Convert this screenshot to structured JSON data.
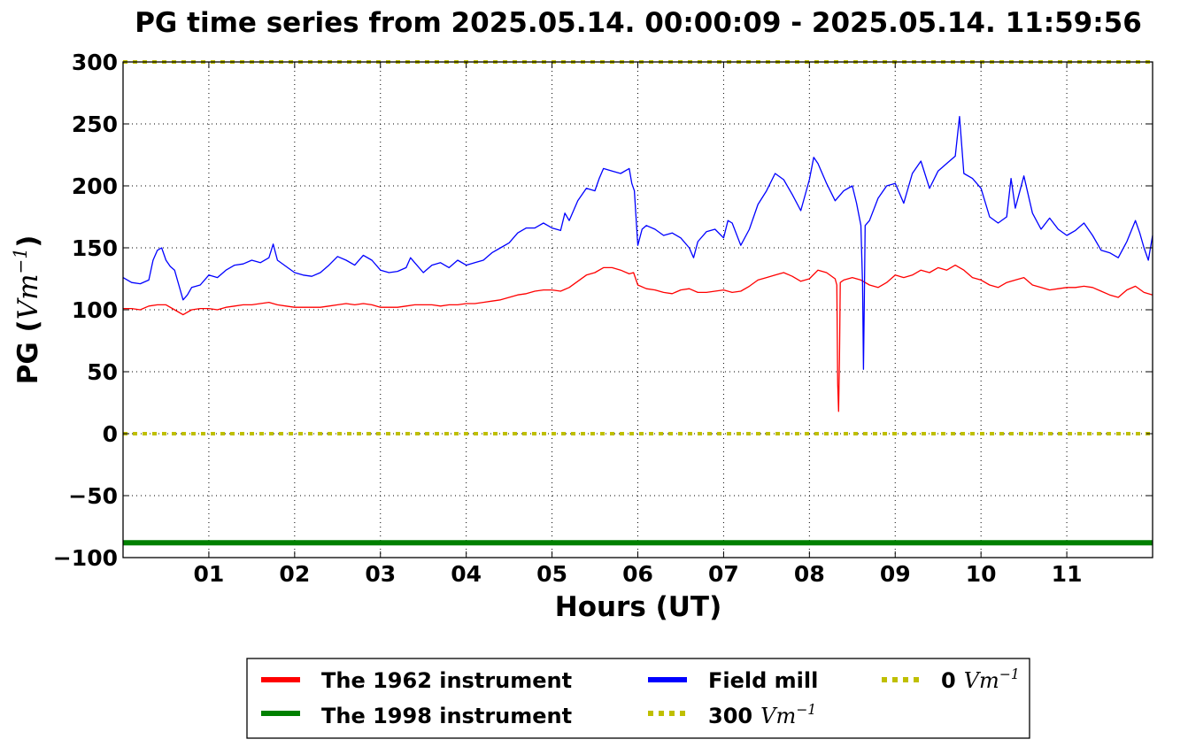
{
  "chart_data": {
    "type": "line",
    "title": "PG time series from 2025.05.14. 00:00:09 - 2025.05.14. 11:59:56",
    "xlabel": "Hours (UT)",
    "ylabel": {
      "prefix": "PG (",
      "math": "Vm",
      "sup": "−1",
      "suffix": ")"
    },
    "xlim": [
      0,
      12
    ],
    "ylim": [
      -100,
      300
    ],
    "xticks": [
      {
        "value": 1,
        "label": "01"
      },
      {
        "value": 2,
        "label": "02"
      },
      {
        "value": 3,
        "label": "03"
      },
      {
        "value": 4,
        "label": "04"
      },
      {
        "value": 5,
        "label": "05"
      },
      {
        "value": 6,
        "label": "06"
      },
      {
        "value": 7,
        "label": "07"
      },
      {
        "value": 8,
        "label": "08"
      },
      {
        "value": 9,
        "label": "09"
      },
      {
        "value": 10,
        "label": "10"
      },
      {
        "value": 11,
        "label": "11"
      }
    ],
    "yticks": [
      {
        "value": 300,
        "label": "300"
      },
      {
        "value": 250,
        "label": "250"
      },
      {
        "value": 200,
        "label": "200"
      },
      {
        "value": 150,
        "label": "150"
      },
      {
        "value": 100,
        "label": "100"
      },
      {
        "value": 50,
        "label": "50"
      },
      {
        "value": 0,
        "label": "0"
      },
      {
        "value": -50,
        "label": "−50"
      },
      {
        "value": -100,
        "label": "−100"
      }
    ],
    "grid": true,
    "legend_position": "below",
    "series": [
      {
        "name": "The 1962 instrument",
        "color": "#ff0000",
        "style": "solid",
        "points": [
          [
            0.0,
            101
          ],
          [
            0.1,
            101
          ],
          [
            0.2,
            100
          ],
          [
            0.3,
            103
          ],
          [
            0.4,
            104
          ],
          [
            0.5,
            104
          ],
          [
            0.6,
            100
          ],
          [
            0.7,
            96
          ],
          [
            0.8,
            100
          ],
          [
            0.9,
            101
          ],
          [
            1.0,
            101
          ],
          [
            1.1,
            100
          ],
          [
            1.2,
            102
          ],
          [
            1.3,
            103
          ],
          [
            1.4,
            104
          ],
          [
            1.5,
            104
          ],
          [
            1.6,
            105
          ],
          [
            1.7,
            106
          ],
          [
            1.8,
            104
          ],
          [
            1.9,
            103
          ],
          [
            2.0,
            102
          ],
          [
            2.1,
            102
          ],
          [
            2.2,
            102
          ],
          [
            2.3,
            102
          ],
          [
            2.4,
            103
          ],
          [
            2.5,
            104
          ],
          [
            2.6,
            105
          ],
          [
            2.7,
            104
          ],
          [
            2.8,
            105
          ],
          [
            2.9,
            104
          ],
          [
            3.0,
            102
          ],
          [
            3.1,
            102
          ],
          [
            3.2,
            102
          ],
          [
            3.3,
            103
          ],
          [
            3.4,
            104
          ],
          [
            3.5,
            104
          ],
          [
            3.6,
            104
          ],
          [
            3.7,
            103
          ],
          [
            3.8,
            104
          ],
          [
            3.9,
            104
          ],
          [
            4.0,
            105
          ],
          [
            4.1,
            105
          ],
          [
            4.2,
            106
          ],
          [
            4.3,
            107
          ],
          [
            4.4,
            108
          ],
          [
            4.5,
            110
          ],
          [
            4.6,
            112
          ],
          [
            4.7,
            113
          ],
          [
            4.8,
            115
          ],
          [
            4.9,
            116
          ],
          [
            5.0,
            116
          ],
          [
            5.1,
            115
          ],
          [
            5.2,
            118
          ],
          [
            5.3,
            123
          ],
          [
            5.4,
            128
          ],
          [
            5.5,
            130
          ],
          [
            5.6,
            134
          ],
          [
            5.7,
            134
          ],
          [
            5.8,
            132
          ],
          [
            5.9,
            129
          ],
          [
            5.95,
            130
          ],
          [
            6.0,
            120
          ],
          [
            6.1,
            117
          ],
          [
            6.2,
            116
          ],
          [
            6.3,
            114
          ],
          [
            6.4,
            113
          ],
          [
            6.5,
            116
          ],
          [
            6.6,
            117
          ],
          [
            6.7,
            114
          ],
          [
            6.8,
            114
          ],
          [
            6.9,
            115
          ],
          [
            7.0,
            116
          ],
          [
            7.1,
            114
          ],
          [
            7.2,
            115
          ],
          [
            7.3,
            119
          ],
          [
            7.4,
            124
          ],
          [
            7.5,
            126
          ],
          [
            7.6,
            128
          ],
          [
            7.7,
            130
          ],
          [
            7.8,
            127
          ],
          [
            7.9,
            123
          ],
          [
            8.0,
            125
          ],
          [
            8.1,
            132
          ],
          [
            8.2,
            130
          ],
          [
            8.3,
            125
          ],
          [
            8.32,
            120
          ],
          [
            8.33,
            40
          ],
          [
            8.34,
            18
          ],
          [
            8.35,
            60
          ],
          [
            8.36,
            122
          ],
          [
            8.4,
            124
          ],
          [
            8.5,
            126
          ],
          [
            8.6,
            124
          ],
          [
            8.7,
            120
          ],
          [
            8.8,
            118
          ],
          [
            8.9,
            122
          ],
          [
            9.0,
            128
          ],
          [
            9.1,
            126
          ],
          [
            9.2,
            128
          ],
          [
            9.3,
            132
          ],
          [
            9.4,
            130
          ],
          [
            9.5,
            134
          ],
          [
            9.6,
            132
          ],
          [
            9.7,
            136
          ],
          [
            9.8,
            132
          ],
          [
            9.9,
            126
          ],
          [
            10.0,
            124
          ],
          [
            10.1,
            120
          ],
          [
            10.2,
            118
          ],
          [
            10.3,
            122
          ],
          [
            10.4,
            124
          ],
          [
            10.5,
            126
          ],
          [
            10.6,
            120
          ],
          [
            10.7,
            118
          ],
          [
            10.8,
            116
          ],
          [
            10.9,
            117
          ],
          [
            11.0,
            118
          ],
          [
            11.1,
            118
          ],
          [
            11.2,
            119
          ],
          [
            11.3,
            118
          ],
          [
            11.4,
            115
          ],
          [
            11.5,
            112
          ],
          [
            11.6,
            110
          ],
          [
            11.7,
            116
          ],
          [
            11.8,
            119
          ],
          [
            11.9,
            114
          ],
          [
            12.0,
            112
          ]
        ]
      },
      {
        "name": "The 1998 instrument",
        "color": "#008000",
        "style": "solid",
        "points": [
          [
            0,
            -88
          ],
          [
            12,
            -88
          ]
        ]
      },
      {
        "name": "Field mill",
        "color": "#0000ff",
        "style": "solid",
        "points": [
          [
            0.0,
            126
          ],
          [
            0.1,
            122
          ],
          [
            0.2,
            121
          ],
          [
            0.3,
            124
          ],
          [
            0.35,
            140
          ],
          [
            0.4,
            148
          ],
          [
            0.45,
            150
          ],
          [
            0.5,
            140
          ],
          [
            0.55,
            135
          ],
          [
            0.6,
            132
          ],
          [
            0.65,
            120
          ],
          [
            0.7,
            108
          ],
          [
            0.75,
            112
          ],
          [
            0.8,
            118
          ],
          [
            0.9,
            120
          ],
          [
            1.0,
            128
          ],
          [
            1.1,
            126
          ],
          [
            1.2,
            132
          ],
          [
            1.3,
            136
          ],
          [
            1.4,
            137
          ],
          [
            1.5,
            140
          ],
          [
            1.6,
            138
          ],
          [
            1.7,
            142
          ],
          [
            1.75,
            153
          ],
          [
            1.8,
            140
          ],
          [
            1.9,
            135
          ],
          [
            2.0,
            130
          ],
          [
            2.1,
            128
          ],
          [
            2.2,
            127
          ],
          [
            2.3,
            130
          ],
          [
            2.4,
            136
          ],
          [
            2.5,
            143
          ],
          [
            2.6,
            140
          ],
          [
            2.7,
            136
          ],
          [
            2.8,
            144
          ],
          [
            2.9,
            140
          ],
          [
            3.0,
            132
          ],
          [
            3.1,
            130
          ],
          [
            3.2,
            131
          ],
          [
            3.3,
            134
          ],
          [
            3.35,
            142
          ],
          [
            3.4,
            138
          ],
          [
            3.5,
            130
          ],
          [
            3.6,
            136
          ],
          [
            3.7,
            138
          ],
          [
            3.8,
            134
          ],
          [
            3.9,
            140
          ],
          [
            4.0,
            136
          ],
          [
            4.1,
            138
          ],
          [
            4.2,
            140
          ],
          [
            4.3,
            146
          ],
          [
            4.4,
            150
          ],
          [
            4.5,
            154
          ],
          [
            4.6,
            162
          ],
          [
            4.7,
            166
          ],
          [
            4.8,
            166
          ],
          [
            4.9,
            170
          ],
          [
            5.0,
            166
          ],
          [
            5.1,
            164
          ],
          [
            5.15,
            178
          ],
          [
            5.2,
            172
          ],
          [
            5.3,
            188
          ],
          [
            5.4,
            198
          ],
          [
            5.5,
            196
          ],
          [
            5.55,
            206
          ],
          [
            5.6,
            214
          ],
          [
            5.7,
            212
          ],
          [
            5.8,
            210
          ],
          [
            5.9,
            214
          ],
          [
            5.93,
            202
          ],
          [
            5.96,
            196
          ],
          [
            6.0,
            152
          ],
          [
            6.05,
            165
          ],
          [
            6.1,
            168
          ],
          [
            6.2,
            165
          ],
          [
            6.3,
            160
          ],
          [
            6.4,
            162
          ],
          [
            6.5,
            158
          ],
          [
            6.6,
            150
          ],
          [
            6.65,
            142
          ],
          [
            6.7,
            155
          ],
          [
            6.8,
            163
          ],
          [
            6.9,
            165
          ],
          [
            7.0,
            158
          ],
          [
            7.05,
            172
          ],
          [
            7.1,
            170
          ],
          [
            7.2,
            152
          ],
          [
            7.3,
            165
          ],
          [
            7.4,
            185
          ],
          [
            7.5,
            196
          ],
          [
            7.6,
            210
          ],
          [
            7.7,
            205
          ],
          [
            7.8,
            193
          ],
          [
            7.9,
            180
          ],
          [
            8.0,
            205
          ],
          [
            8.05,
            223
          ],
          [
            8.1,
            218
          ],
          [
            8.2,
            202
          ],
          [
            8.3,
            188
          ],
          [
            8.4,
            196
          ],
          [
            8.5,
            200
          ],
          [
            8.55,
            186
          ],
          [
            8.6,
            168
          ],
          [
            8.62,
            120
          ],
          [
            8.63,
            52
          ],
          [
            8.64,
            110
          ],
          [
            8.65,
            168
          ],
          [
            8.7,
            172
          ],
          [
            8.8,
            190
          ],
          [
            8.9,
            200
          ],
          [
            9.0,
            202
          ],
          [
            9.1,
            186
          ],
          [
            9.2,
            210
          ],
          [
            9.3,
            220
          ],
          [
            9.4,
            198
          ],
          [
            9.5,
            212
          ],
          [
            9.6,
            218
          ],
          [
            9.7,
            224
          ],
          [
            9.75,
            256
          ],
          [
            9.8,
            210
          ],
          [
            9.9,
            206
          ],
          [
            10.0,
            198
          ],
          [
            10.1,
            175
          ],
          [
            10.2,
            170
          ],
          [
            10.3,
            175
          ],
          [
            10.35,
            206
          ],
          [
            10.4,
            182
          ],
          [
            10.5,
            208
          ],
          [
            10.6,
            178
          ],
          [
            10.7,
            165
          ],
          [
            10.8,
            174
          ],
          [
            10.9,
            165
          ],
          [
            11.0,
            160
          ],
          [
            11.1,
            164
          ],
          [
            11.2,
            170
          ],
          [
            11.3,
            160
          ],
          [
            11.4,
            148
          ],
          [
            11.5,
            146
          ],
          [
            11.6,
            142
          ],
          [
            11.7,
            155
          ],
          [
            11.8,
            172
          ],
          [
            11.85,
            162
          ],
          [
            11.9,
            150
          ],
          [
            11.95,
            140
          ],
          [
            12.0,
            160
          ]
        ]
      },
      {
        "name": "300 Vm⁻¹",
        "label_parts": {
          "text": "300",
          "math": "Vm",
          "sup": "−1"
        },
        "color": "#bfbf00",
        "style": "dotted",
        "points": [
          [
            0,
            300
          ],
          [
            12,
            300
          ]
        ]
      },
      {
        "name": "0 Vm⁻¹",
        "label_parts": {
          "text": "0",
          "math": "Vm",
          "sup": "−1"
        },
        "color": "#bfbf00",
        "style": "dotted",
        "points": [
          [
            0,
            0
          ],
          [
            12,
            0
          ]
        ]
      }
    ]
  }
}
